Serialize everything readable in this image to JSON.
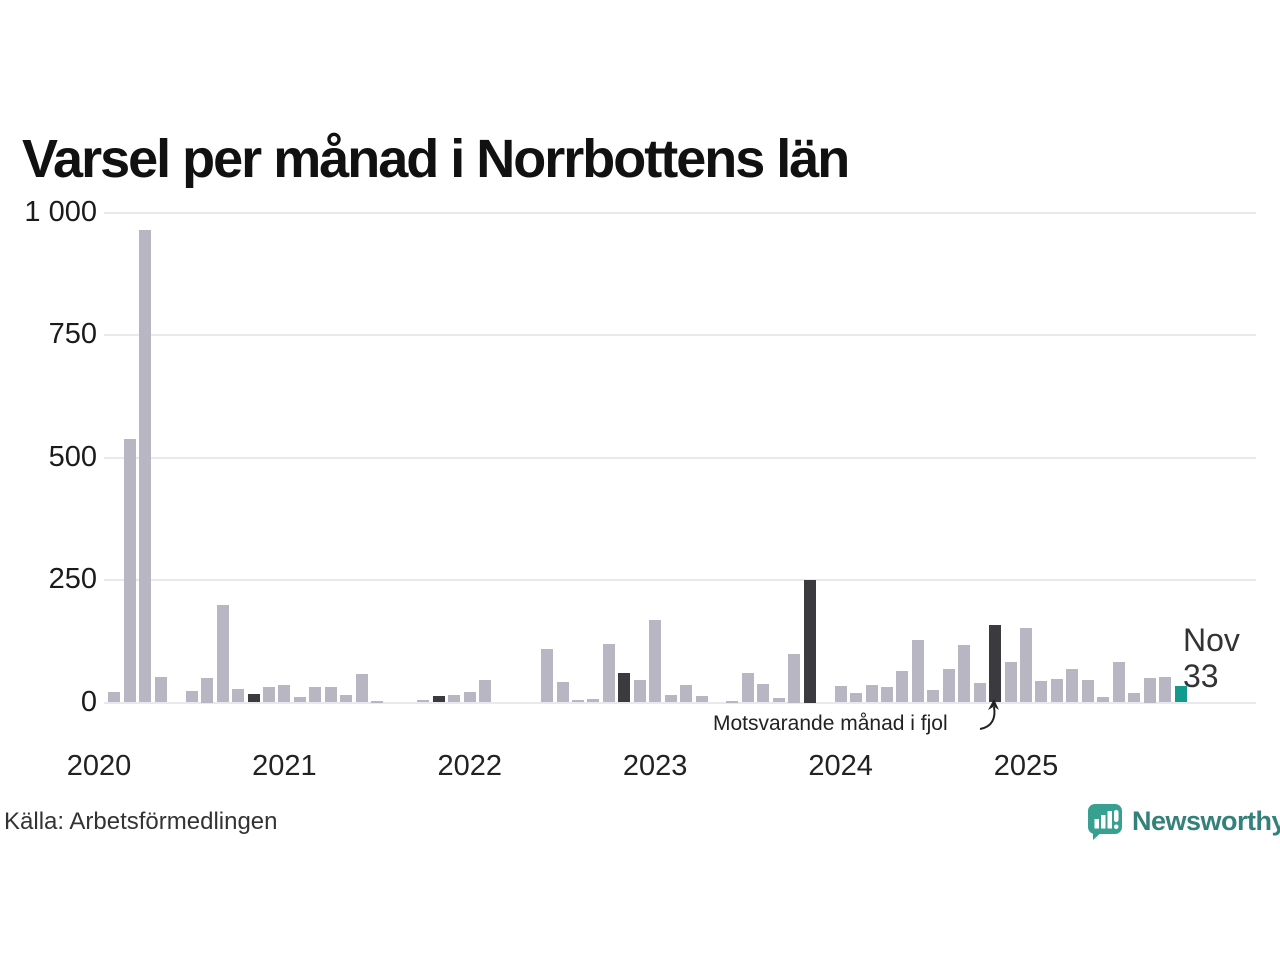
{
  "title": "Varsel per månad i Norrbottens län",
  "source": "Källa: Arbetsförmedlingen",
  "annotation": {
    "text": "Motsvarande månad i fjol"
  },
  "last_point_label": {
    "month": "Nov",
    "value": "33"
  },
  "logo": {
    "text": "Newsworthy"
  },
  "colors": {
    "bar": "#b8b6c3",
    "bar_dark": "#3b3a3e",
    "bar_teal": "#129a8c",
    "gridline": "#e9e8ee",
    "logo_teal": "#38a090",
    "logo_text": "#33817a"
  },
  "chart_data": {
    "type": "bar",
    "title": "Varsel per månad i Norrbottens län",
    "x_start": "2020-01",
    "x_end": "2025-11",
    "year_labels": [
      "2020",
      "2021",
      "2022",
      "2023",
      "2024",
      "2025"
    ],
    "ylim": [
      0,
      1000
    ],
    "yticks": [
      0,
      250,
      500,
      750,
      1000
    ],
    "ytick_labels": [
      "0",
      "250",
      "500",
      "750",
      "1 000"
    ],
    "grid": "horizontal",
    "series": [
      {
        "name": "Varsel per månad",
        "values": [
          0,
          21,
          538,
          965,
          52,
          0,
          24,
          50,
          199,
          27,
          17,
          31,
          36,
          12,
          31,
          32,
          16,
          58,
          4,
          0,
          0,
          6,
          13,
          16,
          21,
          45,
          0,
          0,
          0,
          110,
          41,
          6,
          8,
          120,
          60,
          46,
          168,
          16,
          35,
          14,
          0,
          4,
          60,
          38,
          10,
          100,
          250,
          0,
          33,
          19,
          35,
          31,
          65,
          127,
          26,
          68,
          118,
          40,
          158,
          82,
          153,
          44,
          48,
          69,
          45,
          11,
          83,
          19,
          50,
          52,
          33
        ]
      }
    ],
    "highlight_dark_indices": [
      10,
      22,
      34,
      46,
      58
    ],
    "highlight_dark_meaning": "Motsvarande månad i fjol (november varje år)",
    "highlight_teal_index": 70,
    "last_value": 33
  }
}
